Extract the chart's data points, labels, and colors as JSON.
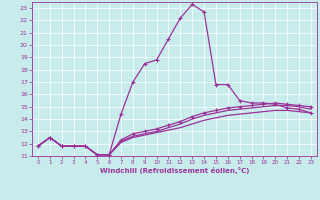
{
  "title": "",
  "xlabel": "Windchill (Refroidissement éolien,°C)",
  "ylabel": "",
  "background_color": "#c8ecec",
  "grid_color": "#b0d8d8",
  "line_color": "#993399",
  "xlim": [
    -0.5,
    23.5
  ],
  "ylim": [
    11,
    23.5
  ],
  "xticks": [
    0,
    1,
    2,
    3,
    4,
    5,
    6,
    7,
    8,
    9,
    10,
    11,
    12,
    13,
    14,
    15,
    16,
    17,
    18,
    19,
    20,
    21,
    22,
    23
  ],
  "yticks": [
    11,
    12,
    13,
    14,
    15,
    16,
    17,
    18,
    19,
    20,
    21,
    22,
    23
  ],
  "line1_x": [
    0,
    1,
    2,
    3,
    4,
    5,
    6,
    7,
    8,
    9,
    10,
    11,
    12,
    13,
    14,
    15,
    16,
    17,
    18,
    19,
    20,
    21,
    22,
    23
  ],
  "line1_y": [
    11.8,
    12.5,
    11.8,
    11.8,
    11.8,
    11.1,
    11.1,
    14.4,
    17.0,
    18.5,
    18.8,
    20.5,
    22.2,
    23.3,
    22.7,
    16.8,
    16.8,
    15.5,
    15.3,
    15.3,
    15.2,
    14.9,
    14.8,
    14.5
  ],
  "line2_x": [
    0,
    1,
    2,
    3,
    4,
    5,
    6,
    7,
    8,
    9,
    10,
    11,
    12,
    13,
    14,
    15,
    16,
    17,
    18,
    19,
    20,
    21,
    22,
    23
  ],
  "line2_y": [
    11.8,
    12.5,
    11.8,
    11.8,
    11.8,
    11.1,
    11.1,
    12.3,
    12.8,
    13.0,
    13.2,
    13.5,
    13.8,
    14.2,
    14.5,
    14.7,
    14.9,
    15.0,
    15.1,
    15.2,
    15.3,
    15.2,
    15.1,
    15.0
  ],
  "line3_x": [
    0,
    1,
    2,
    3,
    4,
    5,
    6,
    7,
    8,
    9,
    10,
    11,
    12,
    13,
    14,
    15,
    16,
    17,
    18,
    19,
    20,
    21,
    22,
    23
  ],
  "line3_y": [
    11.8,
    12.5,
    11.8,
    11.8,
    11.8,
    11.1,
    11.1,
    12.1,
    12.5,
    12.7,
    12.9,
    13.1,
    13.3,
    13.6,
    13.9,
    14.1,
    14.3,
    14.4,
    14.5,
    14.6,
    14.7,
    14.7,
    14.6,
    14.5
  ],
  "line4_x": [
    0,
    1,
    2,
    3,
    4,
    5,
    6,
    7,
    8,
    9,
    10,
    11,
    12,
    13,
    14,
    15,
    16,
    17,
    18,
    19,
    20,
    21,
    22,
    23
  ],
  "line4_y": [
    11.8,
    12.5,
    11.8,
    11.8,
    11.8,
    11.1,
    11.1,
    12.2,
    12.6,
    12.8,
    13.0,
    13.3,
    13.6,
    14.0,
    14.3,
    14.5,
    14.7,
    14.8,
    14.9,
    15.0,
    15.1,
    15.1,
    15.0,
    14.8
  ]
}
